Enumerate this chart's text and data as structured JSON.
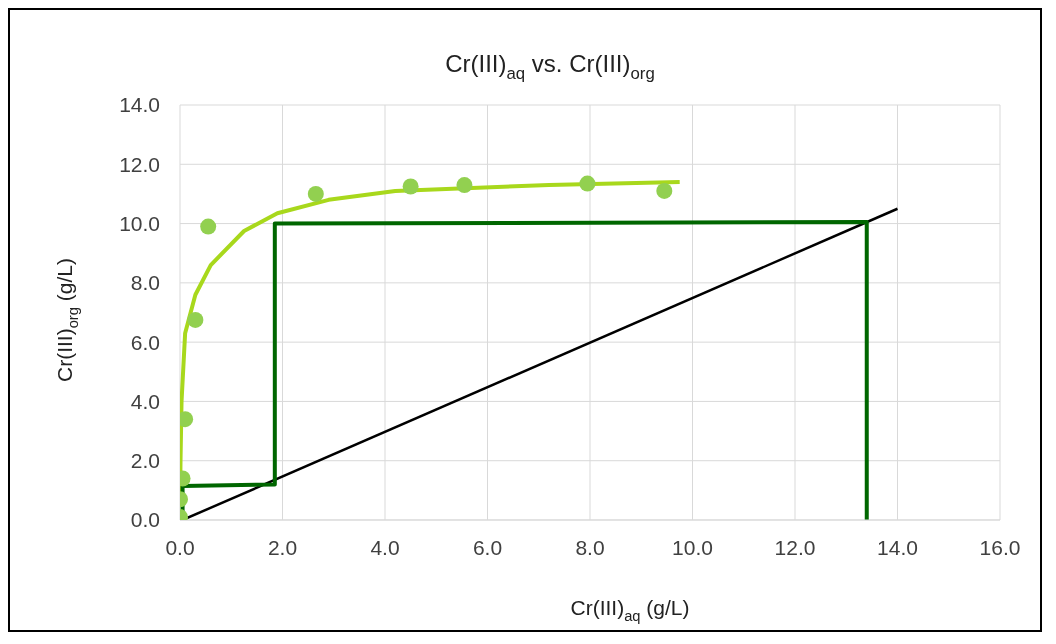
{
  "chart_data": {
    "type": "scatter",
    "title": "Cr(III)$_{aq}$ vs. Cr(III)$_{org}$",
    "xlabel": "Cr(III)$_{aq}$ (g/L)",
    "ylabel": "Cr(III)$_{org}$ (g/L)",
    "xlim": [
      0,
      16
    ],
    "ylim": [
      0,
      14
    ],
    "xticks": [
      {
        "value": 0,
        "label": "0.0"
      },
      {
        "value": 2,
        "label": "2.0"
      },
      {
        "value": 4,
        "label": "4.0"
      },
      {
        "value": 6,
        "label": "6.0"
      },
      {
        "value": 8,
        "label": "8.0"
      },
      {
        "value": 10,
        "label": "10.0"
      },
      {
        "value": 12,
        "label": "12.0"
      },
      {
        "value": 14,
        "label": "14.0"
      },
      {
        "value": 16,
        "label": "16.0"
      }
    ],
    "yticks": [
      {
        "value": 0,
        "label": "0.0"
      },
      {
        "value": 2,
        "label": "2.0"
      },
      {
        "value": 4,
        "label": "4.0"
      },
      {
        "value": 6,
        "label": "6.0"
      },
      {
        "value": 8,
        "label": "8.0"
      },
      {
        "value": 10,
        "label": "10.0"
      },
      {
        "value": 12,
        "label": "12.0"
      },
      {
        "value": 14,
        "label": "14.0"
      }
    ],
    "grid": true,
    "series": [
      {
        "color": "#92d050",
        "marker": "circle",
        "x": [
          0.0,
          0.0,
          0.05,
          0.1,
          0.3,
          0.55,
          2.65,
          4.5,
          5.55,
          7.95,
          9.45
        ],
        "values": [
          0.1,
          0.7,
          1.4,
          3.4,
          6.75,
          9.9,
          11.0,
          11.25,
          11.3,
          11.35,
          11.1
        ]
      },
      {
        "type": "line",
        "color": "#a8d81c",
        "marker": "none",
        "line_style": "solid",
        "x": [
          0.0,
          0.01,
          0.03,
          0.1,
          0.3,
          0.6,
          1.25,
          1.9,
          2.9,
          4.2,
          7.2,
          9.75
        ],
        "values": [
          0.5,
          2.0,
          4.0,
          6.3,
          7.6,
          8.6,
          9.75,
          10.35,
          10.8,
          11.1,
          11.3,
          11.4
        ]
      },
      {
        "type": "line",
        "color": "#000000",
        "marker": "none",
        "line_style": "solid",
        "x": [
          0.05,
          14.0
        ],
        "values": [
          0.0,
          10.5
        ]
      },
      {
        "type": "line",
        "color": "#006600",
        "marker": "none",
        "line_style": "solid",
        "x": [
          0.05,
          0.05,
          1.85,
          1.85,
          13.4,
          13.4
        ],
        "values": [
          0.0,
          1.15,
          1.2,
          10.0,
          10.05,
          0.0
        ]
      }
    ]
  }
}
